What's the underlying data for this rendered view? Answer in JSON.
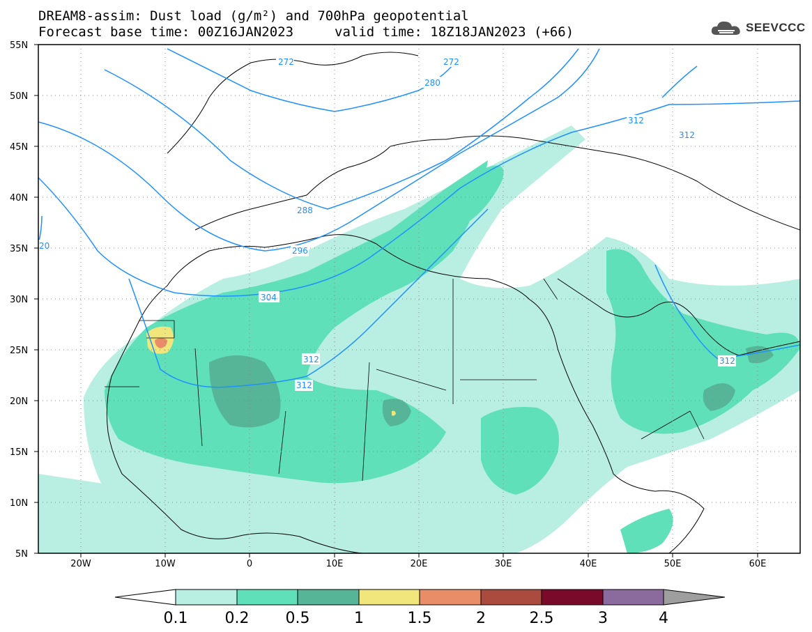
{
  "header": {
    "title_line1": "DREAM8-assim: Dust load (g/m²) and 700hPa geopotential",
    "title_line2": "Forecast base time: 00Z16JAN2023",
    "valid_time": "valid time: 18Z18JAN2023 (+66)",
    "logo_text": "SEEVCCC",
    "logo_icon": "cloud-icon"
  },
  "map": {
    "projection": "lat-lon",
    "lon_range": [
      -25,
      65
    ],
    "lat_range": [
      5,
      55
    ],
    "lat_labels": [
      "55N",
      "50N",
      "45N",
      "40N",
      "35N",
      "30N",
      "25N",
      "20N",
      "15N",
      "10N",
      "5N"
    ],
    "lon_labels": [
      "20W",
      "10W",
      "0",
      "10E",
      "20E",
      "30E",
      "40E",
      "50E",
      "60E"
    ],
    "contour_labels": [
      "272",
      "272",
      "280",
      "288",
      "296",
      "304",
      "312",
      "312",
      "312",
      "312",
      "312",
      "20"
    ],
    "contour_color": "#1e90ff",
    "coast_color": "#000000"
  },
  "colorbar": {
    "levels": [
      "0.1",
      "0.2",
      "0.5",
      "1",
      "1.5",
      "2",
      "2.5",
      "3",
      "4"
    ],
    "colors": [
      "#ffffff",
      "#b9eee3",
      "#5fe0b8",
      "#57b597",
      "#f1e67c",
      "#e98d68",
      "#ab4b3f",
      "#7a0a2a",
      "#8b6a9e",
      "#9e9e9e"
    ]
  }
}
